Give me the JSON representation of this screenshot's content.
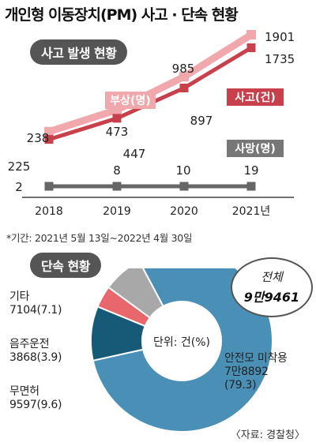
{
  "title": "개인형 이동장치(PM) 사고 · 단속 현황",
  "note": "*기간: 2021년 5월 13일~2022년 4월 30일",
  "source": "〈자료: 경찰청〉",
  "chart_data": [
    {
      "type": "line",
      "title": "사고 발생 현황",
      "categories": [
        "2018",
        "2019",
        "2020",
        "2021년"
      ],
      "series": [
        {
          "name": "부상(명)",
          "values": [
            238,
            473,
            985,
            1901
          ],
          "color": "#f0a8ad"
        },
        {
          "name": "사고(건)",
          "values": [
            225,
            447,
            897,
            1735
          ],
          "color": "#c8404c"
        },
        {
          "name": "사망(명)",
          "values": [
            2,
            8,
            10,
            19
          ],
          "color": "#666666"
        }
      ]
    },
    {
      "type": "pie",
      "title": "단속 현황",
      "unit_label": "단위: 건(%)",
      "total_label": "전체",
      "total_value": "9만9461",
      "slices": [
        {
          "name": "안전모 미착용",
          "value": 78892,
          "value_text": "7만8892",
          "pct": "(79.3)",
          "color": "#4a8fb5"
        },
        {
          "name": "무면허",
          "value": 9597,
          "value_text": "9597",
          "pct": "(9.6)",
          "color": "#165a78"
        },
        {
          "name": "음주운전",
          "value": 3868,
          "value_text": "3868",
          "pct": "(3.9)",
          "color": "#e8676c"
        },
        {
          "name": "기타",
          "value": 7104,
          "value_text": "7104",
          "pct": "(7.1)",
          "color": "#a8a8a8"
        }
      ]
    }
  ]
}
